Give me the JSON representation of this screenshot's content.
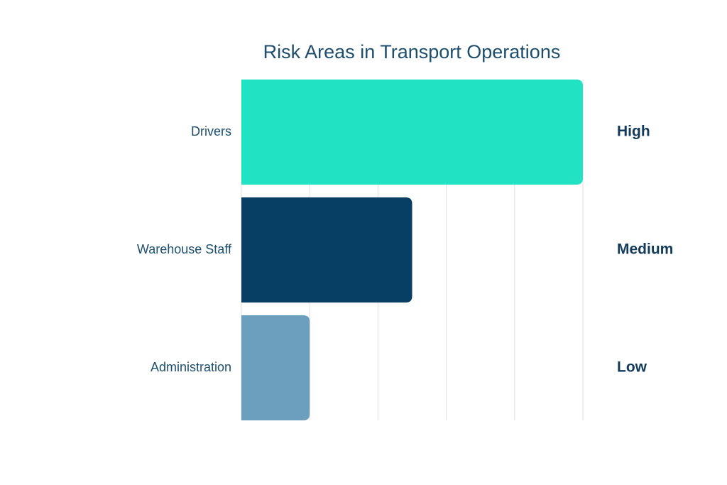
{
  "chart_data": {
    "type": "bar",
    "orientation": "horizontal",
    "title": "Risk Areas in Transport Operations",
    "categories": [
      "Drivers",
      "Warehouse Staff",
      "Administration"
    ],
    "values": [
      5,
      2.5,
      1
    ],
    "value_labels": [
      "High",
      "Medium",
      "Low"
    ],
    "colors": [
      "#22e2c4",
      "#063f63",
      "#6c9fbd"
    ],
    "xlim": [
      0,
      5
    ],
    "xticks": [
      0,
      1,
      2,
      3,
      4,
      5
    ],
    "grid": true
  }
}
